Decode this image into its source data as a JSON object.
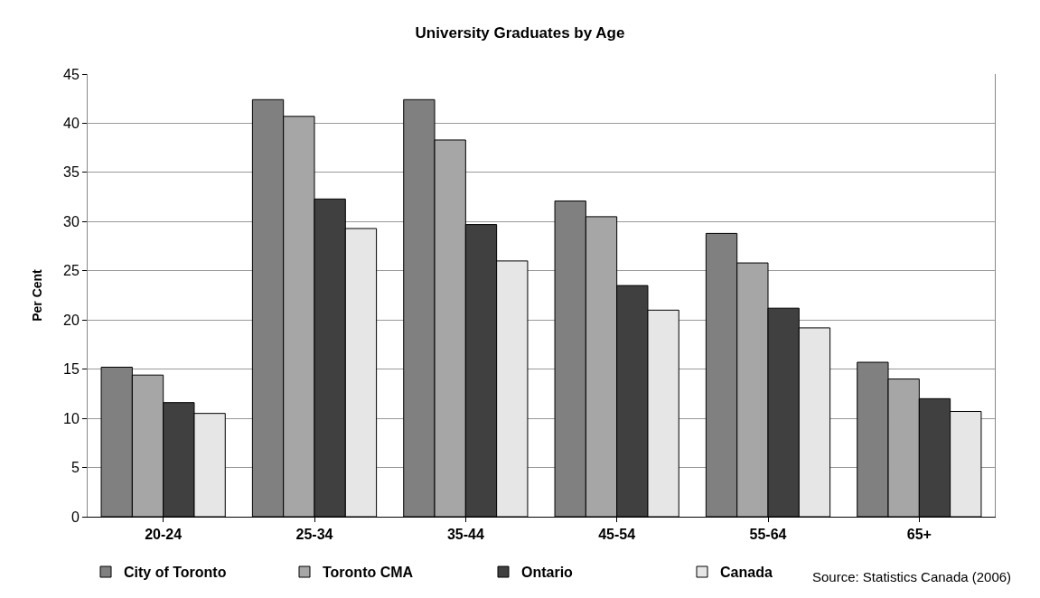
{
  "chart_data": {
    "type": "bar",
    "title": "University Graduates by Age",
    "ylabel": "Per Cent",
    "categories": [
      "20-24",
      "25-34",
      "35-44",
      "45-54",
      "55-64",
      "65+"
    ],
    "series": [
      {
        "name": "City of Toronto",
        "color": "#808080",
        "values": [
          15.2,
          42.4,
          42.4,
          32.1,
          28.8,
          15.7
        ]
      },
      {
        "name": "Toronto CMA",
        "color": "#a6a6a6",
        "values": [
          14.4,
          40.7,
          38.3,
          30.5,
          25.8,
          14.0
        ]
      },
      {
        "name": "Ontario",
        "color": "#404040",
        "values": [
          11.6,
          32.3,
          29.7,
          23.5,
          21.2,
          12.0
        ]
      },
      {
        "name": "Canada",
        "color": "#e6e6e6",
        "values": [
          10.5,
          29.3,
          26.0,
          21.0,
          19.2,
          10.7
        ]
      }
    ],
    "ylim": [
      0,
      45
    ],
    "yticks": [
      0,
      5,
      10,
      15,
      20,
      25,
      30,
      35,
      40,
      45
    ],
    "grid": "y",
    "legend": "bottom",
    "annotations": [
      "Source: Statistics Canada (2006)"
    ]
  }
}
